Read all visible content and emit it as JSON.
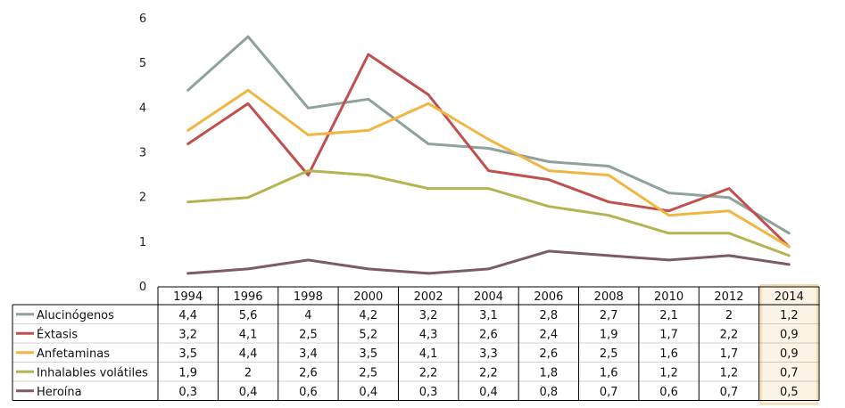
{
  "chart_data": {
    "type": "line",
    "title": "",
    "xlabel": "",
    "ylabel": "",
    "ylim": [
      0,
      6
    ],
    "yticks": [
      0,
      1,
      2,
      3,
      4,
      5,
      6
    ],
    "grid": false,
    "legend": "data-table-left",
    "categories": [
      "1994",
      "1996",
      "1998",
      "2000",
      "2002",
      "2004",
      "2006",
      "2008",
      "2010",
      "2012",
      "2014"
    ],
    "highlight_category": "2014",
    "series": [
      {
        "name": "Alucinógenos",
        "color": "#8FA19C",
        "values": [
          4.4,
          5.6,
          4,
          4.2,
          3.2,
          3.1,
          2.8,
          2.7,
          2.1,
          2,
          1.2
        ],
        "labels": [
          "4,4",
          "5,6",
          "4",
          "4,2",
          "3,2",
          "3,1",
          "2,8",
          "2,7",
          "2,1",
          "2",
          "1,2"
        ]
      },
      {
        "name": "Éxtasis",
        "color": "#C0504D",
        "values": [
          3.2,
          4.1,
          2.5,
          5.2,
          4.3,
          2.6,
          2.4,
          1.9,
          1.7,
          2.2,
          0.9
        ],
        "labels": [
          "3,2",
          "4,1",
          "2,5",
          "5,2",
          "4,3",
          "2,6",
          "2,4",
          "1,9",
          "1,7",
          "2,2",
          "0,9"
        ]
      },
      {
        "name": "Anfetaminas",
        "color": "#F0B642",
        "values": [
          3.5,
          4.4,
          3.4,
          3.5,
          4.1,
          3.3,
          2.6,
          2.5,
          1.6,
          1.7,
          0.9
        ],
        "labels": [
          "3,5",
          "4,4",
          "3,4",
          "3,5",
          "4,1",
          "3,3",
          "2,6",
          "2,5",
          "1,6",
          "1,7",
          "0,9"
        ]
      },
      {
        "name": "Inhalables volátiles",
        "color": "#B5B453",
        "values": [
          1.9,
          2,
          2.6,
          2.5,
          2.2,
          2.2,
          1.8,
          1.6,
          1.2,
          1.2,
          0.7
        ],
        "labels": [
          "1,9",
          "2",
          "2,6",
          "2,5",
          "2,2",
          "2,2",
          "1,8",
          "1,6",
          "1,2",
          "1,2",
          "0,7"
        ]
      },
      {
        "name": "Heroína",
        "color": "#7D5A67",
        "values": [
          0.3,
          0.4,
          0.6,
          0.4,
          0.3,
          0.4,
          0.8,
          0.7,
          0.6,
          0.7,
          0.5
        ],
        "labels": [
          "0,3",
          "0,4",
          "0,6",
          "0,4",
          "0,3",
          "0,4",
          "0,8",
          "0,7",
          "0,6",
          "0,7",
          "0,5"
        ]
      }
    ]
  }
}
